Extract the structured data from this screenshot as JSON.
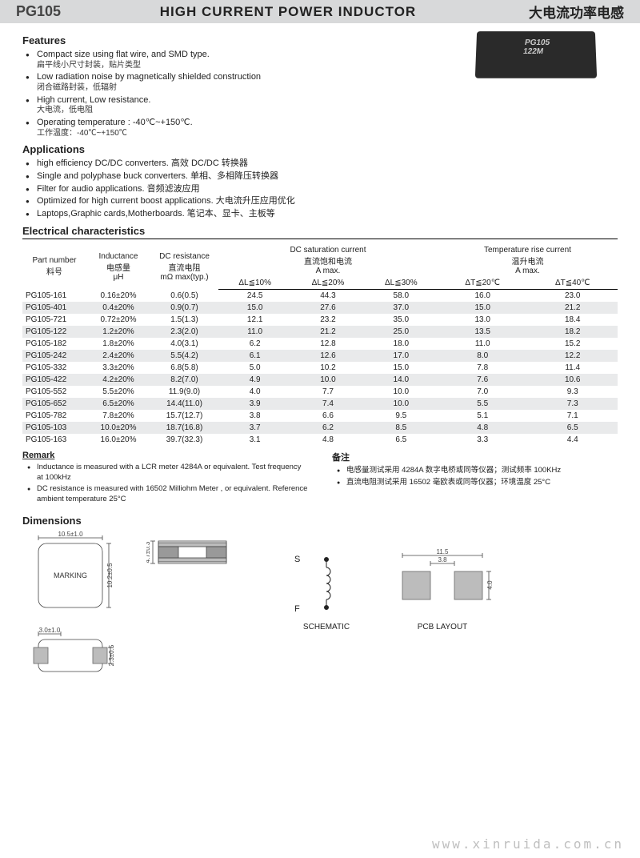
{
  "header": {
    "partNumber": "PG105",
    "titleEn": "HIGH CURRENT POWER INDUCTOR",
    "titleCn": "大电流功率电感"
  },
  "productLabel1": "PG105",
  "productLabel2": "122M",
  "features": {
    "heading": "Features",
    "items": [
      {
        "en": "Compact size using flat wire, and SMD type.",
        "cn": "扁平线小尺寸封装，贴片类型"
      },
      {
        "en": "Low radiation noise by magnetically shielded construction",
        "cn": "闭合磁路封装，低辐射"
      },
      {
        "en": "High current, Low resistance.",
        "cn": "大电流，低电阻"
      },
      {
        "en": "Operating temperature : -40℃~+150℃.",
        "cn": "工作温度：-40℃~+150℃"
      }
    ]
  },
  "applications": {
    "heading": "Applications",
    "items": [
      "high efficiency DC/DC converters.  高效 DC/DC 转换器",
      "Single and polyphase buck converters.  单相、多相降压转换器",
      "Filter for audio applications.  音频滤波应用",
      "Optimized for high current boost applications.  大电流升压应用优化",
      "Laptops,Graphic cards,Motherboards.    笔记本、显卡、主板等"
    ]
  },
  "elec": {
    "heading": "Electrical  characteristics",
    "cols": {
      "pn": {
        "l1": "Part number",
        "l2": "料号"
      },
      "ind": {
        "l1": "Inductance",
        "l2": "电感量",
        "l3": "μH"
      },
      "dcr": {
        "l1": "DC resistance",
        "l2": "直流电阻",
        "l3": "mΩ max(typ.)"
      },
      "sat": {
        "l1": "DC saturation current",
        "l2": "直流饱和电流",
        "l3": "A max."
      },
      "rise": {
        "l1": "Temperature rise current",
        "l2": "温升电流",
        "l3": "A max."
      },
      "dl10": "ΔL≦10%",
      "dl20": "ΔL≦20%",
      "dl30": "ΔL≦30%",
      "dt20": "ΔT≦20℃",
      "dt40": "ΔT≦40℃"
    },
    "rows": [
      [
        "PG105-161",
        "0.16±20%",
        "0.6(0.5)",
        "24.5",
        "44.3",
        "58.0",
        "16.0",
        "23.0"
      ],
      [
        "PG105-401",
        "0.4±20%",
        "0.9(0.7)",
        "15.0",
        "27.6",
        "37.0",
        "15.0",
        "21.2"
      ],
      [
        "PG105-721",
        "0.72±20%",
        "1.5(1.3)",
        "12.1",
        "23.2",
        "35.0",
        "13.0",
        "18.4"
      ],
      [
        "PG105-122",
        "1.2±20%",
        "2.3(2.0)",
        "11.0",
        "21.2",
        "25.0",
        "13.5",
        "18.2"
      ],
      [
        "PG105-182",
        "1.8±20%",
        "4.0(3.1)",
        "6.2",
        "12.8",
        "18.0",
        "11.0",
        "15.2"
      ],
      [
        "PG105-242",
        "2.4±20%",
        "5.5(4.2)",
        "6.1",
        "12.6",
        "17.0",
        "8.0",
        "12.2"
      ],
      [
        "PG105-332",
        "3.3±20%",
        "6.8(5.8)",
        "5.0",
        "10.2",
        "15.0",
        "7.8",
        "11.4"
      ],
      [
        "PG105-422",
        "4.2±20%",
        "8.2(7.0)",
        "4.9",
        "10.0",
        "14.0",
        "7.6",
        "10.6"
      ],
      [
        "PG105-552",
        "5.5±20%",
        "11.9(9.0)",
        "4.0",
        "7.7",
        "10.0",
        "7.0",
        "9.3"
      ],
      [
        "PG105-652",
        "6.5±20%",
        "14.4(11.0)",
        "3.9",
        "7.4",
        "10.0",
        "5.5",
        "7.3"
      ],
      [
        "PG105-782",
        "7.8±20%",
        "15.7(12.7)",
        "3.8",
        "6.6",
        "9.5",
        "5.1",
        "7.1"
      ],
      [
        "PG105-103",
        "10.0±20%",
        "18.7(16.8)",
        "3.7",
        "6.2",
        "8.5",
        "4.8",
        "6.5"
      ],
      [
        "PG105-163",
        "16.0±20%",
        "39.7(32.3)",
        "3.1",
        "4.8",
        "6.5",
        "3.3",
        "4.4"
      ]
    ]
  },
  "remark": {
    "headingEn": "Remark",
    "headingCn": "备注",
    "en": [
      "Inductance is measured with a LCR meter 4284A or equivalent. Test frequency at 100kHz",
      "DC resistance is measured with 16502 Milliohm Meter , or equivalent. Reference ambient temperature 25°C"
    ],
    "cn": [
      "电感量测试采用 4284A  数字电桥或同等仪器；测试频率 100KHz",
      "直流电阻测试采用 16502 毫欧表或同等仪器；环境温度 25°C"
    ]
  },
  "dimensions": {
    "heading": "Dimensions",
    "topW": "10.5±1.0",
    "topH": "10.2±0.5",
    "marking": "MARKING",
    "sideH": "4.7±0.3",
    "botW": "3.0±1.0",
    "botH": "2.3±0.5",
    "schem": {
      "s": "S",
      "f": "F",
      "label": "SCHEMATIC"
    },
    "pcb": {
      "w": "11.5",
      "gap": "3.8",
      "h": "4.0",
      "label": "PCB LAYOUT"
    }
  },
  "watermark": "www.xinruida.com.cn"
}
